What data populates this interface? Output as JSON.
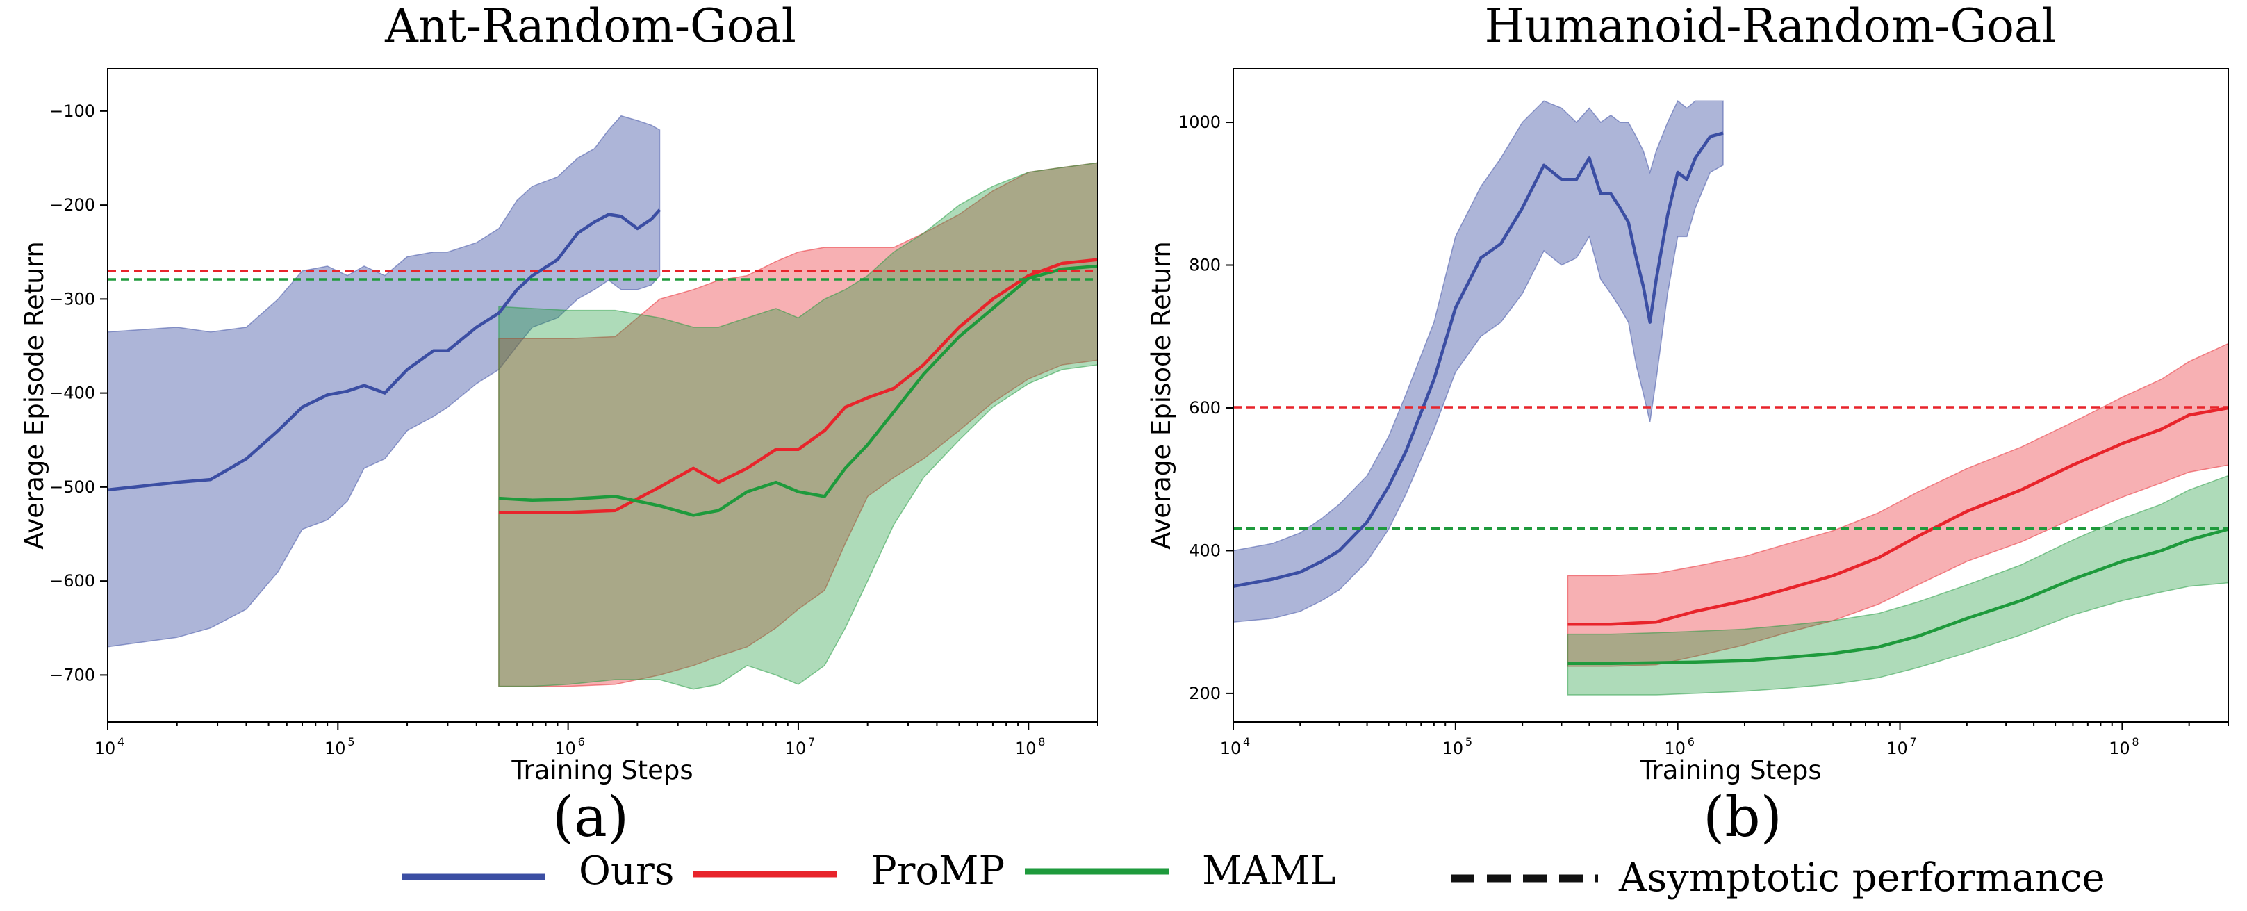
{
  "figure": {
    "legend": [
      {
        "label": "Ours",
        "color": "#3b4ea3",
        "style": "solid"
      },
      {
        "label": "ProMP",
        "color": "#e8242b",
        "style": "solid"
      },
      {
        "label": "MAML",
        "color": "#1e9a3c",
        "style": "solid"
      },
      {
        "label": "Asymptotic performance",
        "color": "#111111",
        "style": "dashed"
      }
    ]
  },
  "chart_data": [
    {
      "type": "line",
      "title": "Ant-Random-Goal",
      "subcaption": "(a)",
      "xlabel": "Training Steps",
      "ylabel": "Average Episode Return",
      "xscale": "log",
      "xlim": [
        10000,
        200000000
      ],
      "ylim": [
        -750,
        -55
      ],
      "x_ticks": [
        {
          "base": "10",
          "exp": "4",
          "v": 10000
        },
        {
          "base": "10",
          "exp": "5",
          "v": 100000
        },
        {
          "base": "10",
          "exp": "6",
          "v": 1000000
        },
        {
          "base": "10",
          "exp": "7",
          "v": 10000000
        },
        {
          "base": "10",
          "exp": "8",
          "v": 100000000
        }
      ],
      "y_ticks": [
        {
          "label": "−100",
          "v": -100
        },
        {
          "label": "−200",
          "v": -200
        },
        {
          "label": "−300",
          "v": -300
        },
        {
          "label": "−400",
          "v": -400
        },
        {
          "label": "−500",
          "v": -500
        },
        {
          "label": "−600",
          "v": -600
        },
        {
          "label": "−700",
          "v": -700
        }
      ],
      "series": [
        {
          "name": "Ours",
          "color": "#3b4ea3",
          "x": [
            10000,
            20000,
            28000,
            40000,
            55000,
            70000,
            90000,
            110000,
            130000,
            160000,
            200000,
            260000,
            300000,
            400000,
            500000,
            600000,
            700000,
            900000,
            1100000,
            1300000,
            1500000,
            1700000,
            2000000,
            2300000,
            2500000
          ],
          "mean": [
            -503,
            -495,
            -492,
            -470,
            -440,
            -415,
            -402,
            -398,
            -392,
            -400,
            -375,
            -355,
            -355,
            -330,
            -315,
            -290,
            -275,
            -258,
            -230,
            -218,
            -210,
            -212,
            -225,
            -215,
            -205
          ],
          "lower": [
            -670,
            -660,
            -650,
            -630,
            -590,
            -545,
            -535,
            -515,
            -480,
            -470,
            -440,
            -425,
            -415,
            -390,
            -375,
            -350,
            -330,
            -320,
            -300,
            -290,
            -280,
            -290,
            -290,
            -285,
            -275
          ],
          "upper": [
            -335,
            -330,
            -335,
            -330,
            -300,
            -270,
            -265,
            -275,
            -265,
            -275,
            -255,
            -250,
            -250,
            -240,
            -225,
            -195,
            -180,
            -170,
            -150,
            -140,
            -120,
            -105,
            -110,
            -115,
            -120
          ]
        },
        {
          "name": "ProMP",
          "color": "#e8242b",
          "x": [
            500000,
            700000,
            1000000,
            1600000,
            2500000,
            3500000,
            4500000,
            6000000,
            8000000,
            10000000,
            13000000,
            16000000,
            20000000,
            26000000,
            35000000,
            50000000,
            70000000,
            100000000,
            140000000,
            200000000
          ],
          "mean": [
            -527,
            -527,
            -527,
            -525,
            -500,
            -480,
            -495,
            -480,
            -460,
            -460,
            -440,
            -415,
            -405,
            -395,
            -370,
            -330,
            -300,
            -275,
            -262,
            -258
          ],
          "lower": [
            -712,
            -712,
            -712,
            -710,
            -700,
            -690,
            -680,
            -670,
            -650,
            -630,
            -610,
            -560,
            -510,
            -490,
            -470,
            -440,
            -410,
            -385,
            -370,
            -365
          ],
          "upper": [
            -342,
            -342,
            -342,
            -340,
            -300,
            -290,
            -280,
            -275,
            -260,
            -250,
            -245,
            -245,
            -245,
            -245,
            -230,
            -210,
            -185,
            -165,
            -160,
            -155
          ]
        },
        {
          "name": "MAML",
          "color": "#1e9a3c",
          "x": [
            500000,
            700000,
            1000000,
            1600000,
            2500000,
            3500000,
            4500000,
            6000000,
            8000000,
            10000000,
            13000000,
            16000000,
            20000000,
            26000000,
            35000000,
            50000000,
            70000000,
            100000000,
            140000000,
            200000000
          ],
          "mean": [
            -512,
            -514,
            -513,
            -510,
            -520,
            -530,
            -525,
            -505,
            -495,
            -505,
            -510,
            -480,
            -455,
            -420,
            -380,
            -340,
            -310,
            -278,
            -268,
            -265
          ],
          "lower": [
            -712,
            -712,
            -710,
            -705,
            -705,
            -715,
            -710,
            -690,
            -700,
            -710,
            -690,
            -650,
            -600,
            -540,
            -490,
            -450,
            -415,
            -390,
            -375,
            -370
          ],
          "upper": [
            -308,
            -310,
            -312,
            -312,
            -320,
            -330,
            -330,
            -320,
            -310,
            -320,
            -300,
            -290,
            -275,
            -250,
            -230,
            -200,
            -180,
            -165,
            -160,
            -155
          ]
        },
        {
          "name": "ProMP asymptotic",
          "color": "#e8242b",
          "style": "dashed",
          "x": [
            10000,
            200000000
          ],
          "mean": [
            -270,
            -270
          ]
        },
        {
          "name": "MAML asymptotic",
          "color": "#1e9a3c",
          "style": "dashed",
          "x": [
            10000,
            200000000
          ],
          "mean": [
            -279,
            -279
          ]
        }
      ]
    },
    {
      "type": "line",
      "title": "Humanoid-Random-Goal",
      "subcaption": "(b)",
      "xlabel": "Training Steps",
      "ylabel": "Average Episode Return",
      "xscale": "log",
      "xlim": [
        10000,
        300000000
      ],
      "ylim": [
        160,
        1075
      ],
      "x_ticks": [
        {
          "base": "10",
          "exp": "4",
          "v": 10000
        },
        {
          "base": "10",
          "exp": "5",
          "v": 100000
        },
        {
          "base": "10",
          "exp": "6",
          "v": 1000000
        },
        {
          "base": "10",
          "exp": "7",
          "v": 10000000
        },
        {
          "base": "10",
          "exp": "8",
          "v": 100000000
        }
      ],
      "y_ticks": [
        {
          "label": "200",
          "v": 200
        },
        {
          "label": "400",
          "v": 400
        },
        {
          "label": "600",
          "v": 600
        },
        {
          "label": "800",
          "v": 800
        },
        {
          "label": "1000",
          "v": 1000
        }
      ],
      "series": [
        {
          "name": "Ours",
          "color": "#3b4ea3",
          "x": [
            10000,
            15000,
            20000,
            25000,
            30000,
            40000,
            50000,
            60000,
            80000,
            100000,
            130000,
            160000,
            200000,
            250000,
            300000,
            350000,
            400000,
            450000,
            500000,
            550000,
            600000,
            650000,
            700000,
            750000,
            800000,
            900000,
            1000000,
            1100000,
            1200000,
            1400000,
            1600000
          ],
          "mean": [
            350,
            360,
            370,
            385,
            400,
            440,
            490,
            540,
            640,
            740,
            810,
            830,
            880,
            940,
            920,
            920,
            950,
            900,
            900,
            880,
            860,
            810,
            770,
            720,
            780,
            870,
            930,
            920,
            950,
            980,
            985
          ],
          "lower": [
            300,
            305,
            315,
            330,
            345,
            385,
            430,
            480,
            570,
            650,
            700,
            720,
            760,
            820,
            800,
            810,
            840,
            780,
            760,
            740,
            720,
            660,
            620,
            580,
            640,
            760,
            840,
            840,
            880,
            930,
            940
          ],
          "upper": [
            400,
            410,
            425,
            445,
            465,
            505,
            560,
            620,
            720,
            840,
            910,
            950,
            1000,
            1030,
            1020,
            1000,
            1020,
            1000,
            1010,
            1000,
            1000,
            980,
            960,
            930,
            960,
            1000,
            1030,
            1020,
            1030,
            1030,
            1030
          ]
        },
        {
          "name": "ProMP",
          "color": "#e8242b",
          "x": [
            320000,
            500000,
            800000,
            1200000,
            2000000,
            3000000,
            5000000,
            8000000,
            12000000,
            20000000,
            35000000,
            60000000,
            100000000,
            150000000,
            200000000,
            300000000
          ],
          "mean": [
            297,
            297,
            300,
            315,
            330,
            345,
            365,
            390,
            420,
            455,
            485,
            520,
            550,
            570,
            590,
            600
          ],
          "lower": [
            238,
            238,
            240,
            252,
            268,
            284,
            302,
            325,
            352,
            385,
            412,
            445,
            475,
            495,
            510,
            520
          ],
          "upper": [
            365,
            365,
            368,
            378,
            392,
            408,
            428,
            453,
            482,
            515,
            545,
            580,
            615,
            640,
            665,
            690
          ]
        },
        {
          "name": "MAML",
          "color": "#1e9a3c",
          "x": [
            320000,
            500000,
            800000,
            1200000,
            2000000,
            3000000,
            5000000,
            8000000,
            12000000,
            20000000,
            35000000,
            60000000,
            100000000,
            150000000,
            200000000,
            300000000
          ],
          "mean": [
            242,
            242,
            243,
            244,
            246,
            250,
            256,
            265,
            280,
            305,
            330,
            360,
            385,
            400,
            415,
            430
          ],
          "lower": [
            198,
            198,
            198,
            200,
            203,
            207,
            213,
            222,
            236,
            257,
            282,
            310,
            330,
            342,
            350,
            355
          ],
          "upper": [
            283,
            283,
            285,
            287,
            290,
            295,
            302,
            312,
            328,
            352,
            380,
            415,
            445,
            465,
            485,
            505
          ]
        },
        {
          "name": "ProMP asymptotic",
          "color": "#e8242b",
          "style": "dashed",
          "x": [
            10000,
            300000000
          ],
          "mean": [
            601,
            601
          ]
        },
        {
          "name": "MAML asymptotic",
          "color": "#1e9a3c",
          "style": "dashed",
          "x": [
            10000,
            300000000
          ],
          "mean": [
            431,
            431
          ]
        }
      ]
    }
  ]
}
